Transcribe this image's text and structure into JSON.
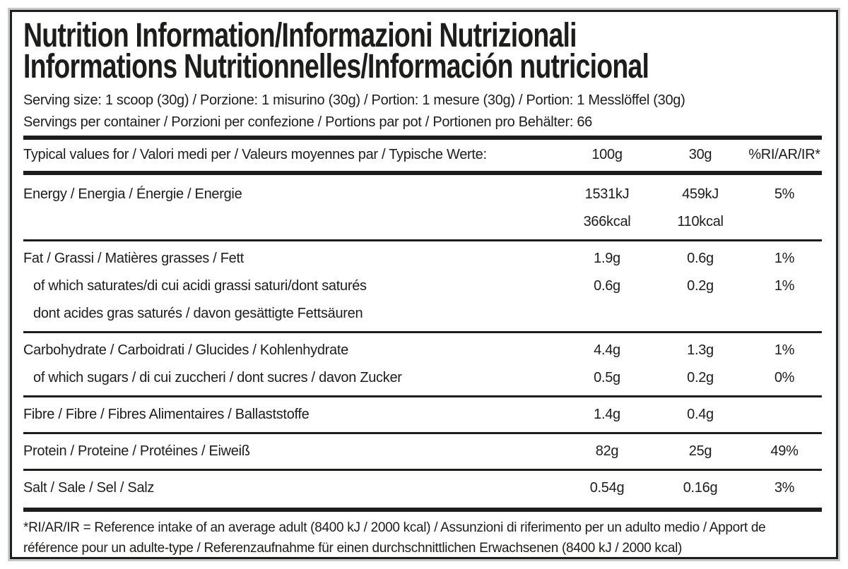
{
  "colors": {
    "text": "#1d1d1b",
    "divider": "#1d1d1b",
    "outer_edge": "#c6c9ca",
    "background": "#ffffff"
  },
  "title": {
    "line1": "Nutrition Information/Informazioni Nutrizionali",
    "line2": "Informations Nutritionnelles/Información nutricional"
  },
  "serving": {
    "size_line": "Serving size: 1 scoop (30g) / Porzione: 1 misurino (30g) / Portion: 1 mesure (30g) / Portion: 1 Messlöffel (30g)",
    "per_container_line": "Servings per container / Porzioni per confezione / Portions par pot / Portionen pro Behälter: 66"
  },
  "table": {
    "header": {
      "label": "Typical values for / Valori medi per / Valeurs moyennes par / Typische Werte:",
      "col_100g": "100g",
      "col_30g": "30g",
      "col_ri": "%RI/AR/IR*"
    },
    "rows": [
      {
        "lines": [
          {
            "label": "Energy / Energia / Énergie / Energie",
            "per_100g": "1531kJ",
            "per_30g": "459kJ",
            "ri": "5%"
          },
          {
            "label": "",
            "per_100g": "366kcal",
            "per_30g": "110kcal",
            "ri": ""
          }
        ]
      },
      {
        "lines": [
          {
            "label": "Fat / Grassi / Matières grasses / Fett",
            "per_100g": "1.9g",
            "per_30g": "0.6g",
            "ri": "1%"
          },
          {
            "label": "of which saturates/di cui acidi grassi saturi/dont saturés",
            "indent": true,
            "per_100g": "0.6g",
            "per_30g": "0.2g",
            "ri": "1%"
          },
          {
            "label": "dont acides gras saturés / davon gesättigte Fettsäuren",
            "indent": true,
            "per_100g": "",
            "per_30g": "",
            "ri": ""
          }
        ]
      },
      {
        "lines": [
          {
            "label": "Carbohydrate / Carboidrati / Glucides / Kohlenhydrate",
            "per_100g": "4.4g",
            "per_30g": "1.3g",
            "ri": "1%"
          },
          {
            "label": "of which sugars / di cui zuccheri / dont sucres / davon Zucker",
            "indent": true,
            "per_100g": "0.5g",
            "per_30g": "0.2g",
            "ri": "0%"
          }
        ]
      },
      {
        "lines": [
          {
            "label": "Fibre / Fibre / Fibres Alimentaires / Ballaststoffe",
            "per_100g": "1.4g",
            "per_30g": "0.4g",
            "ri": ""
          }
        ]
      },
      {
        "lines": [
          {
            "label": "Protein / Proteine / Protéines / Eiweiß",
            "per_100g": "82g",
            "per_30g": "25g",
            "ri": "49%"
          }
        ]
      },
      {
        "lines": [
          {
            "label": "Salt / Sale / Sel / Salz",
            "per_100g": "0.54g",
            "per_30g": "0.16g",
            "ri": "3%"
          }
        ]
      }
    ]
  },
  "footnote": "*RI/AR/IR = Reference intake of an average adult (8400 kJ / 2000 kcal)  / Assunzioni di riferimento per un adulto medio / Apport de référence pour un adulte-type / Referenzaufnahme für einen durchschnittlichen Erwachsenen (8400 kJ / 2000 kcal)"
}
